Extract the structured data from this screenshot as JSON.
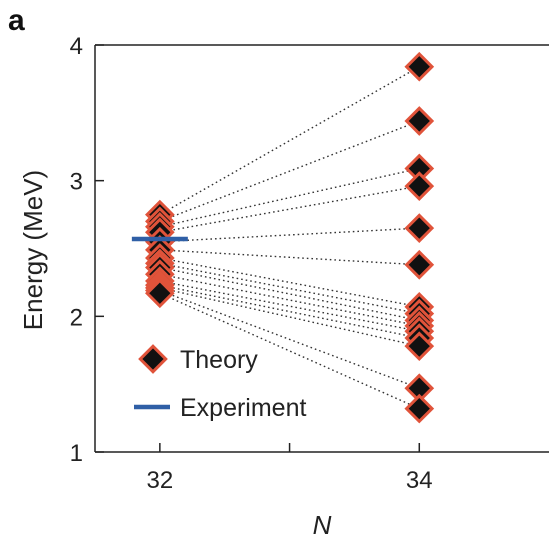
{
  "panel_label": "a",
  "chart_data": {
    "type": "scatter",
    "title": "",
    "xlabel": "N",
    "ylabel": "Energy (MeV)",
    "xlim": [
      31.5,
      35.0
    ],
    "ylim": [
      1,
      4
    ],
    "xticks": [
      32,
      34
    ],
    "xtick_labels": [
      "32",
      "34"
    ],
    "yticks": [
      1,
      2,
      3,
      4
    ],
    "ytick_labels": [
      "1",
      "2",
      "3",
      "4"
    ],
    "grid": false,
    "legend_position": "bottom-left",
    "legend": [
      {
        "label": "Theory",
        "marker": "diamond"
      },
      {
        "label": "Experiment",
        "marker": "line"
      }
    ],
    "series": [
      {
        "name": "Theory",
        "color": "#111111",
        "edge_color": "#e0533a",
        "connections": [
          {
            "x": [
              32,
              34
            ],
            "y": [
              2.75,
              3.84
            ]
          },
          {
            "x": [
              32,
              34
            ],
            "y": [
              2.7,
              3.44
            ]
          },
          {
            "x": [
              32,
              34
            ],
            "y": [
              2.66,
              3.09
            ]
          },
          {
            "x": [
              32,
              34
            ],
            "y": [
              2.62,
              2.96
            ]
          },
          {
            "x": [
              32,
              34
            ],
            "y": [
              2.55,
              2.65
            ]
          },
          {
            "x": [
              32,
              34
            ],
            "y": [
              2.49,
              2.38
            ]
          },
          {
            "x": [
              32,
              34
            ],
            "y": [
              2.43,
              2.07
            ]
          },
          {
            "x": [
              32,
              34
            ],
            "y": [
              2.39,
              2.02
            ]
          },
          {
            "x": [
              32,
              34
            ],
            "y": [
              2.36,
              1.97
            ]
          },
          {
            "x": [
              32,
              34
            ],
            "y": [
              2.31,
              1.93
            ]
          },
          {
            "x": [
              32,
              34
            ],
            "y": [
              2.26,
              1.89
            ]
          },
          {
            "x": [
              32,
              34
            ],
            "y": [
              2.23,
              1.84
            ]
          },
          {
            "x": [
              32,
              34
            ],
            "y": [
              2.21,
              1.78
            ]
          },
          {
            "x": [
              32,
              34
            ],
            "y": [
              2.19,
              1.47
            ]
          },
          {
            "x": [
              32,
              34
            ],
            "y": [
              2.17,
              1.32
            ]
          }
        ]
      },
      {
        "name": "Experiment",
        "color": "#2f5fa6",
        "x": [
          32
        ],
        "y": [
          2.57
        ]
      }
    ]
  }
}
